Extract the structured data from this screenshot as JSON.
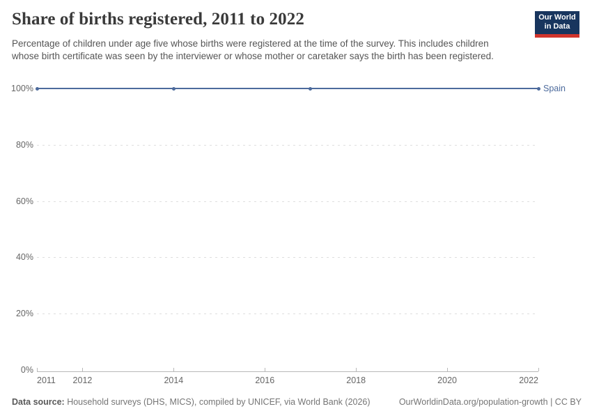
{
  "header": {
    "title": "Share of births registered, 2011 to 2022",
    "subtitle": "Percentage of children under age five whose births were registered at the time of the survey. This includes children whose birth certificate was seen by the interviewer or whose mother or caretaker says the birth has been registered.",
    "logo": {
      "line1": "Our World",
      "line2": "in Data"
    }
  },
  "chart_data": {
    "type": "line",
    "title": "Share of births registered, 2011 to 2022",
    "x": [
      2011,
      2014,
      2017,
      2022
    ],
    "series": [
      {
        "name": "Spain",
        "values": [
          100,
          100,
          100,
          100
        ],
        "color": "#4C6A9C"
      }
    ],
    "xlabel": "",
    "ylabel": "",
    "xlim": [
      2011,
      2022
    ],
    "ylim": [
      0,
      100
    ],
    "x_ticks": [
      "2011",
      "2012",
      "2014",
      "2016",
      "2018",
      "2020",
      "2022"
    ],
    "y_ticks": [
      "100%",
      "80%",
      "60%",
      "40%",
      "20%",
      "0%"
    ],
    "grid": "horizontal-dashed",
    "legend_position": "line-end-label"
  },
  "footer": {
    "source_label": "Data source:",
    "source_text": " Household surveys (DHS, MICS), compiled by UNICEF, via World Bank (2026)",
    "attribution": "OurWorldinData.org/population-growth | CC BY"
  },
  "colors": {
    "accent_line": "#4C6A9C",
    "logo_navy": "#18355e",
    "logo_red": "#d1342c",
    "gridline": "#dedede",
    "axis": "#b8b8b8",
    "tick_label": "#666666"
  }
}
